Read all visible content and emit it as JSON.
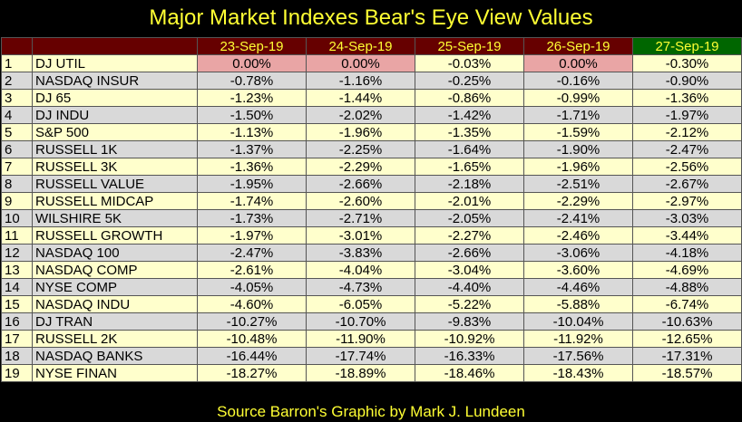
{
  "title": "Major Market Indexes Bear's Eye View Values",
  "footer": "Source Barron's   Graphic by Mark J. Lundeen",
  "colors": {
    "header_red": "#660000",
    "header_green": "#006600",
    "title_yellow": "#ffff33",
    "highlight_pink": "#e9a5a5",
    "row_light": "#ffffcc",
    "row_gray": "#d9d9d9"
  },
  "chart_data": {
    "type": "table",
    "title": "Major Market Indexes Bear's Eye View Values",
    "columns": [
      "23-Sep-19",
      "24-Sep-19",
      "25-Sep-19",
      "26-Sep-19",
      "27-Sep-19"
    ],
    "rows": [
      {
        "num": "1",
        "name": "DJ  UTIL",
        "values": [
          "0.00%",
          "0.00%",
          "-0.03%",
          "0.00%",
          "-0.30%"
        ]
      },
      {
        "num": "2",
        "name": "NASDAQ INSUR",
        "values": [
          "-0.78%",
          "-1.16%",
          "-0.25%",
          "-0.16%",
          "-0.90%"
        ]
      },
      {
        "num": "3",
        "name": "DJ  65",
        "values": [
          "-1.23%",
          "-1.44%",
          "-0.86%",
          "-0.99%",
          "-1.36%"
        ]
      },
      {
        "num": "4",
        "name": "DJ  INDU",
        "values": [
          "-1.50%",
          "-2.02%",
          "-1.42%",
          "-1.71%",
          "-1.97%"
        ]
      },
      {
        "num": "5",
        "name": "S&P 500",
        "values": [
          "-1.13%",
          "-1.96%",
          "-1.35%",
          "-1.59%",
          "-2.12%"
        ]
      },
      {
        "num": "6",
        "name": "RUSSELL 1K",
        "values": [
          "-1.37%",
          "-2.25%",
          "-1.64%",
          "-1.90%",
          "-2.47%"
        ]
      },
      {
        "num": "7",
        "name": "RUSSELL 3K",
        "values": [
          "-1.36%",
          "-2.29%",
          "-1.65%",
          "-1.96%",
          "-2.56%"
        ]
      },
      {
        "num": "8",
        "name": "RUSSELL VALUE",
        "values": [
          "-1.95%",
          "-2.66%",
          "-2.18%",
          "-2.51%",
          "-2.67%"
        ]
      },
      {
        "num": "9",
        "name": "RUSSELL MIDCAP",
        "values": [
          "-1.74%",
          "-2.60%",
          "-2.01%",
          "-2.29%",
          "-2.97%"
        ]
      },
      {
        "num": "10",
        "name": "WILSHIRE 5K",
        "values": [
          "-1.73%",
          "-2.71%",
          "-2.05%",
          "-2.41%",
          "-3.03%"
        ]
      },
      {
        "num": "11",
        "name": "RUSSELL GROWTH",
        "values": [
          "-1.97%",
          "-3.01%",
          "-2.27%",
          "-2.46%",
          "-3.44%"
        ]
      },
      {
        "num": "12",
        "name": "NASDAQ 100",
        "values": [
          "-2.47%",
          "-3.83%",
          "-2.66%",
          "-3.06%",
          "-4.18%"
        ]
      },
      {
        "num": "13",
        "name": "NASDAQ COMP",
        "values": [
          "-2.61%",
          "-4.04%",
          "-3.04%",
          "-3.60%",
          "-4.69%"
        ]
      },
      {
        "num": "14",
        "name": "NYSE COMP",
        "values": [
          "-4.05%",
          "-4.73%",
          "-4.40%",
          "-4.46%",
          "-4.88%"
        ]
      },
      {
        "num": "15",
        "name": "NASDAQ INDU",
        "values": [
          "-4.60%",
          "-6.05%",
          "-5.22%",
          "-5.88%",
          "-6.74%"
        ]
      },
      {
        "num": "16",
        "name": "DJ  TRAN",
        "values": [
          "-10.27%",
          "-10.70%",
          "-9.83%",
          "-10.04%",
          "-10.63%"
        ]
      },
      {
        "num": "17",
        "name": "RUSSELL 2K",
        "values": [
          "-10.48%",
          "-11.90%",
          "-10.92%",
          "-11.92%",
          "-12.65%"
        ]
      },
      {
        "num": "18",
        "name": "NASDAQ BANKS",
        "values": [
          "-16.44%",
          "-17.74%",
          "-16.33%",
          "-17.56%",
          "-17.31%"
        ]
      },
      {
        "num": "19",
        "name": "NYSE FINAN",
        "values": [
          "-18.27%",
          "-18.89%",
          "-18.46%",
          "-18.43%",
          "-18.57%"
        ]
      }
    ]
  }
}
